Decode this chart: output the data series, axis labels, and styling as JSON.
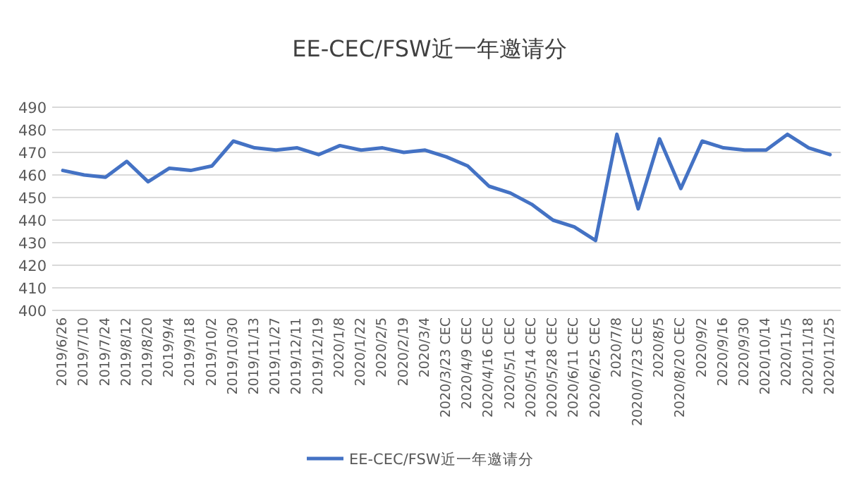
{
  "chart_data": {
    "type": "line",
    "title": "EE-CEC/FSW近一年邀请分",
    "categories": [
      "2019/6/26",
      "2019/7/10",
      "2019/7/24",
      "2019/8/12",
      "2019/8/20",
      "2019/9/4",
      "2019/9/18",
      "2019/10/2",
      "2019/10/30",
      "2019/11/13",
      "2019/11/27",
      "2019/12/11",
      "2019/12/19",
      "2020/1/8",
      "2020/1/22",
      "2020/2/5",
      "2020/2/19",
      "2020/3/4",
      "2020/3/23 CEC",
      "2020/4/9 CEC",
      "2020/4/16 CEC",
      "2020/5/1 CEC",
      "2020/5/14 CEC",
      "2020/5/28 CEC",
      "2020/6/11 CEC",
      "2020/6/25 CEC",
      "2020/7/8",
      "2020/07/23 CEC",
      "2020/8/5",
      "2020/8/20 CEC",
      "2020/9/2",
      "2020/9/16",
      "2020/9/30",
      "2020/10/14",
      "2020/11/5",
      "2020/11/18",
      "2020/11/25"
    ],
    "series": [
      {
        "name": "EE-CEC/FSW近一年邀请分",
        "color": "#4472c4",
        "values": [
          462,
          460,
          459,
          466,
          457,
          463,
          462,
          464,
          475,
          472,
          471,
          472,
          469,
          473,
          471,
          472,
          470,
          471,
          468,
          464,
          455,
          452,
          447,
          440,
          437,
          431,
          478,
          445,
          476,
          454,
          475,
          472,
          471,
          471,
          478,
          472,
          469
        ]
      }
    ],
    "ylim": [
      400,
      490
    ],
    "yticks": [
      400,
      410,
      420,
      430,
      440,
      450,
      460,
      470,
      480,
      490
    ],
    "grid": "y",
    "legend": "bottom",
    "marker": "none",
    "line_style": "solid"
  }
}
